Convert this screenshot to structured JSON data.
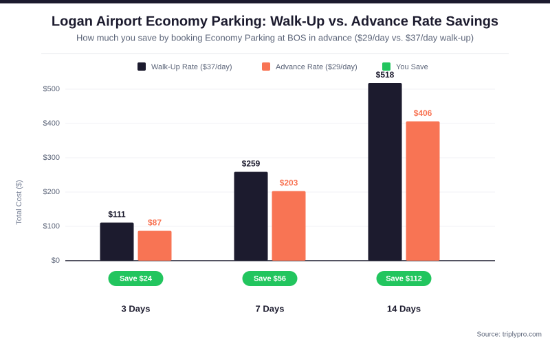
{
  "chart_data": {
    "type": "bar",
    "title": "Logan Airport Economy Parking: Walk-Up vs. Advance Rate Savings",
    "subtitle": "How much you save by booking Economy Parking at BOS in advance ($29/day vs. $37/day walk-up)",
    "y_label": "Total Cost ($)",
    "source": "Source: triplypro.com",
    "categories": [
      "3 Days",
      "7 Days",
      "14 Days"
    ],
    "series": [
      {
        "name": "Walk-Up Rate ($37/day)",
        "color": "#1c1b2e",
        "values": [
          111,
          259,
          518
        ],
        "value_labels": [
          "$111",
          "$259",
          "$518"
        ]
      },
      {
        "name": "Advance Rate ($29/day)",
        "color": "#f87454",
        "values": [
          87,
          203,
          406
        ],
        "value_labels": [
          "$87",
          "$203",
          "$406"
        ]
      },
      {
        "name": "You Save",
        "color": "#22c55e",
        "values": [
          24,
          56,
          112
        ],
        "value_labels": [
          "Save $24",
          "Save $56",
          "Save $112"
        ]
      }
    ],
    "ylim": [
      0,
      500
    ],
    "yticks": [
      {
        "value": 0,
        "label": "$0"
      },
      {
        "value": 100,
        "label": "$100"
      },
      {
        "value": 200,
        "label": "$200"
      },
      {
        "value": 300,
        "label": "$300"
      },
      {
        "value": 400,
        "label": "$400"
      },
      {
        "value": 500,
        "label": "$500"
      }
    ],
    "grid": true
  }
}
